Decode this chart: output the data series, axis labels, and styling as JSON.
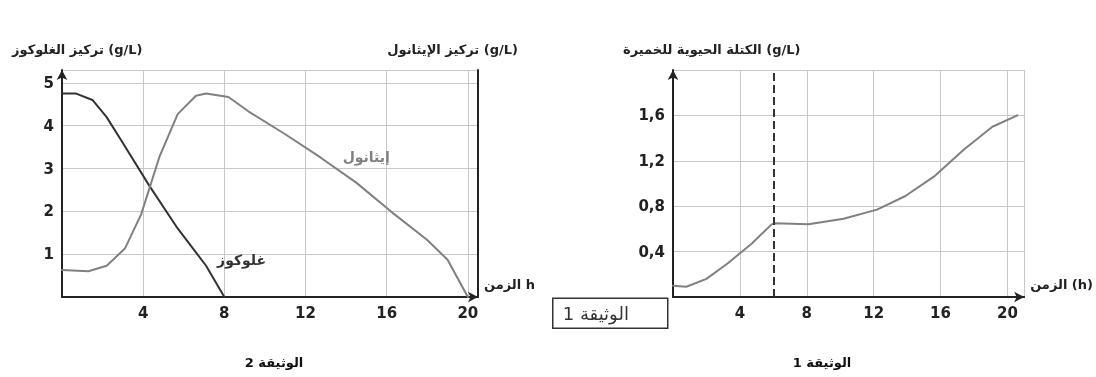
{
  "chart_data": [
    {
      "type": "line",
      "ylabel": "تركيز الغلوكوز (g/L)",
      "y2label": "تركيز الإيثانول (g/L)",
      "xlabel": "الزمن h",
      "xlim": [
        0,
        20.5
      ],
      "xticks": [
        4,
        8,
        12,
        16,
        20
      ],
      "ylim": [
        0,
        5.3
      ],
      "yticks": [
        1,
        2,
        3,
        4,
        5
      ],
      "grid": true,
      "marker": "none",
      "line_style": "solid",
      "series": [
        {
          "name": "غلوكوز",
          "color": "#333333",
          "x": [
            0,
            0.7,
            1.5,
            2.2,
            2.9,
            4.3,
            5.7,
            7.1,
            8.0
          ],
          "values": [
            4.75,
            4.75,
            4.6,
            4.2,
            3.67,
            2.6,
            1.6,
            0.73,
            0
          ]
        },
        {
          "name": "إيثانول",
          "color": "#808080",
          "x": [
            0,
            1.3,
            2.2,
            3.1,
            3.9,
            4.8,
            5.7,
            6.6,
            7.1,
            8.2,
            9.2,
            11.0,
            12.7,
            14.5,
            16.2,
            18.0,
            19.0,
            20.0
          ],
          "values": [
            0.63,
            0.6,
            0.73,
            1.13,
            1.93,
            3.27,
            4.27,
            4.7,
            4.75,
            4.67,
            4.33,
            3.8,
            3.27,
            2.67,
            2.0,
            1.33,
            0.87,
            0
          ]
        }
      ],
      "annotations": [
        "الوثيقة 2"
      ]
    },
    {
      "type": "line",
      "ylabel": "الكتلة الحيوية للخميرة (g/L)",
      "xlabel": "الزمن (h)",
      "xlim": [
        0,
        21
      ],
      "xticks": [
        4,
        8,
        12,
        16,
        20
      ],
      "ylim": [
        0,
        2
      ],
      "yticks": [
        {
          "value": 0.4,
          "label": "0,4"
        },
        {
          "value": 0.8,
          "label": "0,8"
        },
        {
          "value": 1.2,
          "label": "1,2"
        },
        {
          "value": 1.6,
          "label": "1,6"
        }
      ],
      "grid": true,
      "marker": "none",
      "line_style": "solid",
      "series": [
        {
          "color": "#808080",
          "x": [
            0,
            0.8,
            2.0,
            3.3,
            4.7,
            5.9,
            6.1,
            8.1,
            10.2,
            12.2,
            13.9,
            15.6,
            17.4,
            19.1,
            20.6
          ],
          "values": [
            0.1,
            0.09,
            0.16,
            0.3,
            0.47,
            0.64,
            0.65,
            0.64,
            0.69,
            0.77,
            0.89,
            1.06,
            1.3,
            1.5,
            1.6
          ]
        }
      ],
      "ref_lines": [
        {
          "axis": "x",
          "value": 6,
          "line_style": "dashed",
          "color": "#333333"
        }
      ],
      "annotations": [
        "الوثيقة 1",
        "الوثيقة 1"
      ]
    }
  ]
}
